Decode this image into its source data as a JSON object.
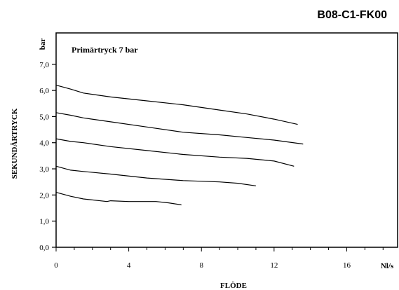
{
  "chart_data": {
    "type": "line",
    "code": "B08-C1-FK00",
    "annotation": "Primärtryck 7 bar",
    "xlabel": "FLÖDE",
    "xunit": "Nl/s",
    "ylabel": "SEKUNDÄRTRYCK",
    "yunit": "bar",
    "xlim": [
      0,
      18.8
    ],
    "ylim": [
      0,
      8.2
    ],
    "xticks": [
      0,
      4,
      8,
      12,
      16
    ],
    "xtick_labels": [
      "0",
      "4",
      "8",
      "12",
      "16"
    ],
    "yticks": [
      0,
      1,
      2,
      3,
      4,
      5,
      6,
      7
    ],
    "ytick_labels": [
      "0,0",
      "1,0",
      "2,0",
      "3,0",
      "4,0",
      "5,0",
      "6,0",
      "7,0"
    ],
    "grid": false,
    "series": [
      {
        "x": [
          0,
          0.8,
          1.5,
          3,
          5,
          7,
          9,
          10.5,
          12,
          13.3
        ],
        "y": [
          6.2,
          6.05,
          5.9,
          5.75,
          5.6,
          5.45,
          5.25,
          5.1,
          4.9,
          4.7
        ]
      },
      {
        "x": [
          0,
          0.8,
          1.5,
          3,
          5,
          7,
          9,
          10.5,
          12,
          13.6
        ],
        "y": [
          5.15,
          5.05,
          4.95,
          4.8,
          4.6,
          4.4,
          4.3,
          4.2,
          4.1,
          3.95
        ]
      },
      {
        "x": [
          0,
          0.8,
          1.5,
          3,
          5,
          7,
          9,
          10.5,
          12,
          13.1
        ],
        "y": [
          4.15,
          4.05,
          4.0,
          3.85,
          3.7,
          3.55,
          3.45,
          3.4,
          3.3,
          3.1
        ]
      },
      {
        "x": [
          0,
          0.8,
          1.5,
          3,
          5,
          7,
          9,
          10,
          11
        ],
        "y": [
          3.1,
          2.95,
          2.9,
          2.8,
          2.65,
          2.55,
          2.5,
          2.45,
          2.35
        ]
      },
      {
        "x": [
          0,
          0.8,
          1.5,
          2.8,
          3.0,
          4,
          5.5,
          6.2,
          6.9
        ],
        "y": [
          2.1,
          1.95,
          1.85,
          1.75,
          1.78,
          1.75,
          1.75,
          1.7,
          1.62
        ]
      }
    ]
  }
}
